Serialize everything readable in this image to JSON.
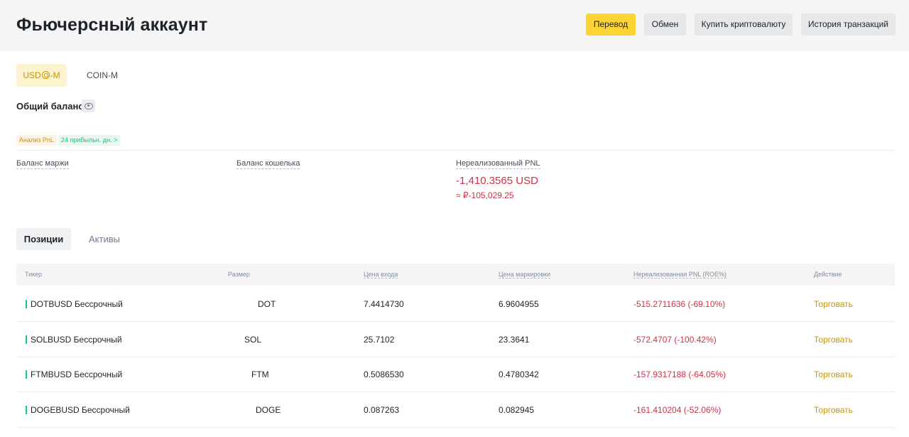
{
  "header": {
    "title": "Фьючерсный аккаунт",
    "buttons": {
      "transfer": "Перевод",
      "exchange": "Обмен",
      "buy_crypto": "Купить криптовалюту",
      "history": "История транзакций"
    }
  },
  "mode_tabs": {
    "usds_prefix": "USD",
    "usds_suffix": "-M",
    "coin": "COIN-M"
  },
  "balance": {
    "label": "Общий баланс",
    "pnl_analysis_label": "Анализ PnL",
    "pnl_analysis_badge": "24 прибыльн. дн. >"
  },
  "metrics": {
    "margin_balance_label": "Баланс маржи",
    "wallet_balance_label": "Баланс кошелька",
    "unrealized_pnl_label": "Нереализованный PNL",
    "unrealized_pnl_value": "-1,410.3565 USD",
    "unrealized_pnl_approx": "≈ ₽-105,029.25"
  },
  "sub_tabs": {
    "positions": "Позиции",
    "assets": "Активы"
  },
  "table": {
    "headers": {
      "ticker": "Тикер",
      "size": "Размер",
      "entry_price": "Цена входа",
      "mark_price": "Цена маркировки",
      "unrealized_pnl": "Нереализованная PNL (ROE%)",
      "action": "Действие"
    },
    "rows": [
      {
        "ticker": "DOTBUSD Бессрочный",
        "size": "DOT",
        "entry": "7.4414730",
        "mark": "6.9604955",
        "pnl": "-515.2711636 (-69.10%)",
        "action": "Торговать"
      },
      {
        "ticker": "SOLBUSD Бессрочный",
        "size": "SOL",
        "entry": "25.7102",
        "mark": "23.3641",
        "pnl": "-572.4707 (-100.42%)",
        "action": "Торговать"
      },
      {
        "ticker": "FTMBUSD Бессрочный",
        "size": "FTM",
        "entry": "0.5086530",
        "mark": "0.4780342",
        "pnl": "-157.9317188 (-64.05%)",
        "action": "Торговать"
      },
      {
        "ticker": "DOGEBUSD Бессрочный",
        "size": "DOGE",
        "entry": "0.087263",
        "mark": "0.082945",
        "pnl": "-161.410204 (-52.06%)",
        "action": "Торговать"
      }
    ]
  },
  "colors": {
    "accent": "#fcd535",
    "negative": "#cf304a",
    "positive": "#0ecb81",
    "action": "#c99400"
  }
}
